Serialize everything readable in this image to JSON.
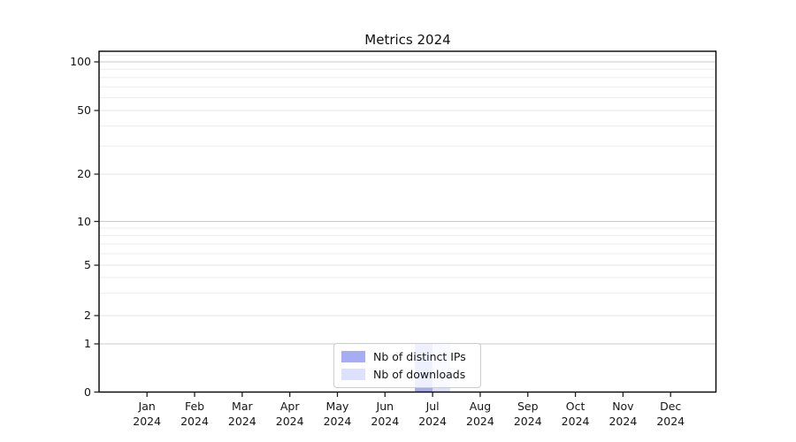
{
  "window": {
    "background_color": "#ffffff"
  },
  "chart_data": {
    "type": "bar",
    "title": "Metrics 2024",
    "xlabel": "",
    "ylabel": "",
    "y_scale": "log-like with 0 baseline",
    "y_ticks": [
      0,
      1,
      2,
      5,
      10,
      20,
      50,
      100
    ],
    "y_minor_ticks": [
      3,
      4,
      6,
      7,
      8,
      9,
      30,
      40,
      60,
      70,
      80,
      90,
      110
    ],
    "ylim": [
      0,
      110
    ],
    "grid": "horizontal only",
    "categories": [
      "Jan",
      "Feb",
      "Mar",
      "Apr",
      "May",
      "Jun",
      "Jul",
      "Aug",
      "Sep",
      "Oct",
      "Nov",
      "Dec"
    ],
    "x_tick_labels": [
      {
        "month": "Jan",
        "year": "2024"
      },
      {
        "month": "Feb",
        "year": "2024"
      },
      {
        "month": "Mar",
        "year": "2024"
      },
      {
        "month": "Apr",
        "year": "2024"
      },
      {
        "month": "May",
        "year": "2024"
      },
      {
        "month": "Jun",
        "year": "2024"
      },
      {
        "month": "Jul",
        "year": "2024"
      },
      {
        "month": "Aug",
        "year": "2024"
      },
      {
        "month": "Sep",
        "year": "2024"
      },
      {
        "month": "Oct",
        "year": "2024"
      },
      {
        "month": "Nov",
        "year": "2024"
      },
      {
        "month": "Dec",
        "year": "2024"
      }
    ],
    "series": [
      {
        "name": "Nb of distinct IPs",
        "color": "#a7adf3",
        "values": [
          0,
          0,
          0,
          0,
          0,
          0,
          1,
          0,
          0,
          0,
          0,
          0
        ]
      },
      {
        "name": "Nb of downloads",
        "color": "#dde1fb",
        "values": [
          0,
          0,
          0,
          0,
          0,
          0,
          1,
          0,
          0,
          0,
          0,
          0
        ]
      }
    ],
    "legend": {
      "position": "bottom-center-inside",
      "entries": [
        "Nb of distinct IPs",
        "Nb of downloads"
      ]
    },
    "colors": {
      "frame": "#000000",
      "tick": "#222222",
      "major_power_grid": "#c9c9c9",
      "major_grid": "#e4e4e4",
      "minor_grid": "#ededed",
      "text": "#151515"
    }
  }
}
